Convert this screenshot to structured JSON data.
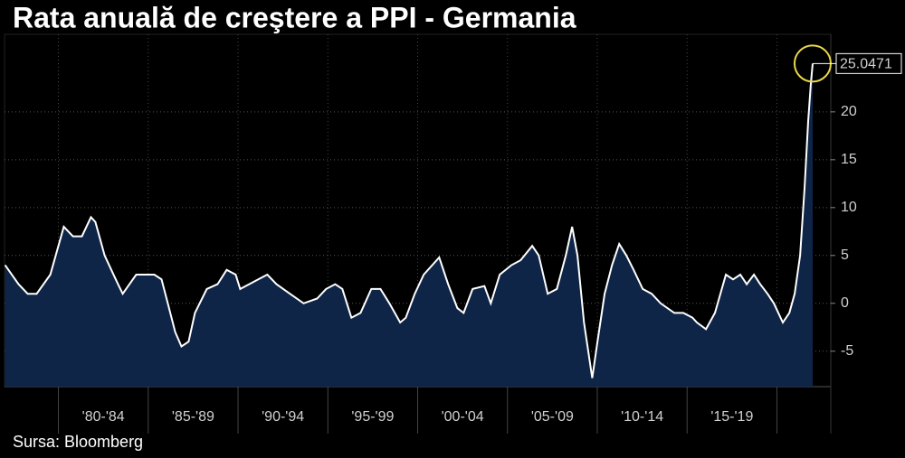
{
  "chart_data": {
    "type": "area-line",
    "title": "Rata anuală de creştere a PPI - Germania",
    "source": "Sursa: Bloomberg",
    "color": "#ffffff",
    "fill_color": "#0e2547",
    "grid": true,
    "xlim": [
      1977,
      2023
    ],
    "ylim": [
      -8.7,
      28.1
    ],
    "yticks": [
      -5,
      0,
      5,
      10,
      15,
      20
    ],
    "x_dividers": [
      1980,
      1985,
      1990,
      1995,
      2000,
      2005,
      2010,
      2015,
      2020
    ],
    "x_period_labels": [
      "'80-'84",
      "'85-'89",
      "'90-'94",
      "'95-'99",
      "'00-'04",
      "'05-'09",
      "'10-'14",
      "'15-'19"
    ],
    "x": [
      1977.03,
      1977.78,
      1978.29,
      1978.79,
      1979.55,
      1980.3,
      1980.81,
      1981.31,
      1981.81,
      1982.06,
      1982.57,
      1983.32,
      1983.58,
      1984.33,
      1985.34,
      1985.74,
      1986.09,
      1986.5,
      1986.85,
      1987.25,
      1987.6,
      1988.26,
      1988.86,
      1989.37,
      1989.87,
      1990.12,
      1990.62,
      1991.13,
      1991.63,
      1992.14,
      1992.89,
      1993.65,
      1994.4,
      1994.9,
      1995.41,
      1995.81,
      1996.31,
      1996.82,
      1997.42,
      1997.93,
      1998.43,
      1999.03,
      1999.34,
      1999.84,
      2000.34,
      2001.2,
      2001.7,
      2002.21,
      2002.56,
      2003.06,
      2003.72,
      2004.07,
      2004.57,
      2005.23,
      2005.73,
      2006.38,
      2006.74,
      2007.24,
      2007.75,
      2008.25,
      2008.6,
      2008.9,
      2009.26,
      2009.72,
      2010.01,
      2010.41,
      2010.82,
      2011.22,
      2011.62,
      2012.02,
      2012.53,
      2013.03,
      2013.53,
      2014.29,
      2014.79,
      2015.3,
      2015.55,
      2016.05,
      2016.55,
      2017.16,
      2017.56,
      2017.96,
      2018.32,
      2018.72,
      2019.07,
      2019.48,
      2019.83,
      2020.33,
      2020.69,
      2020.99,
      2021.29,
      2021.54,
      2021.74,
      2021.89,
      2021.99
    ],
    "series": [
      {
        "name": "PPI",
        "values": [
          4,
          2,
          1,
          1,
          3,
          8,
          7,
          7,
          9,
          8.5,
          5,
          2,
          1,
          3,
          3,
          2.5,
          0,
          -3,
          -4.5,
          -4,
          -1,
          1.5,
          2,
          3.5,
          3,
          1.5,
          2,
          2.5,
          3,
          2,
          1,
          0,
          0.5,
          1.5,
          2,
          1.5,
          -1.5,
          -1,
          1.5,
          1.5,
          0,
          -2,
          -1.5,
          1,
          3,
          4.8,
          2,
          -0.5,
          -1,
          1.5,
          1.8,
          0,
          3,
          4,
          4.5,
          6,
          5,
          1,
          1.5,
          5,
          8,
          5,
          -2,
          -7.8,
          -4,
          1,
          4,
          6.2,
          5,
          3.5,
          1.5,
          1,
          0,
          -1,
          -1,
          -1.5,
          -2,
          -2.7,
          -1,
          3,
          2.5,
          3,
          2,
          3,
          2,
          1,
          0,
          -2,
          -1,
          1,
          5,
          12,
          19,
          23,
          25.0471
        ]
      }
    ]
  }
}
